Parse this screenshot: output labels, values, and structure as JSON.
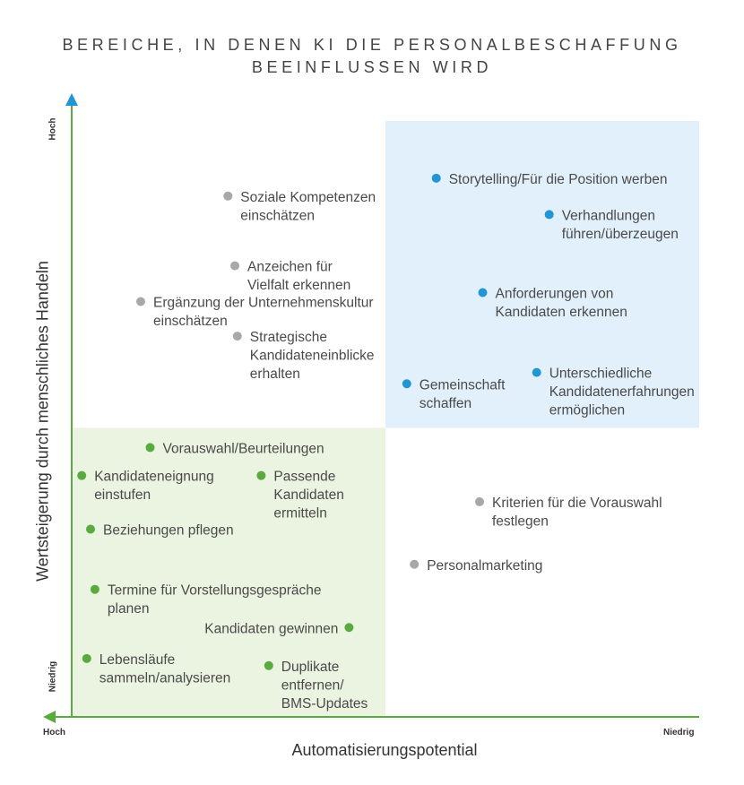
{
  "title_line1": "BEREICHE, IN DENEN KI DIE PERSONALBESCHAFFUNG",
  "title_line2": "BEEINFLUSSEN WIRD",
  "colors": {
    "blue": "#2196d3",
    "green": "#5aab3f",
    "gray": "#a8a8a8",
    "axis": "#5aab3f",
    "axis_top": "#2196d3",
    "blue_zone": "#e1f0fb",
    "green_zone": "#ebf3e1"
  },
  "chart_data": {
    "type": "scatter",
    "title": "BEREICHE, IN DENEN KI DIE PERSONALBESCHAFFUNG BEEINFLUSSEN WIRD",
    "xlabel": "Automatisierungspotential",
    "ylabel": "Wertsteigerung durch menschliches Handeln",
    "x_low_label": "Niedrig",
    "x_high_label": "Hoch",
    "y_low_label": "Niedrig",
    "y_high_label": "Hoch",
    "x_direction": "Hoch (left) to Niedrig (right)",
    "xlim": [
      0,
      100
    ],
    "ylim": [
      0,
      100
    ],
    "quadrants": [
      {
        "name": "blue",
        "x": [
          50,
          100
        ],
        "y": [
          48.5,
          100
        ]
      },
      {
        "name": "green",
        "x": [
          0,
          50
        ],
        "y": [
          0,
          48.5
        ]
      }
    ],
    "points": [
      {
        "label": [
          "Storytelling/Für die Position werben"
        ],
        "x": 58.1,
        "y": 90.4,
        "color": "blue",
        "side": "right"
      },
      {
        "label": [
          "Verhandlungen",
          "führen/überzeugen"
        ],
        "x": 76.1,
        "y": 84.3,
        "color": "blue",
        "side": "right"
      },
      {
        "label": [
          "Anforderungen von",
          "Kandidaten erkennen"
        ],
        "x": 65.5,
        "y": 71.2,
        "color": "blue",
        "side": "right"
      },
      {
        "label": [
          "Unterschiedliche",
          "Kandidatenerfahrungen",
          "ermöglichen"
        ],
        "x": 74.1,
        "y": 57.8,
        "color": "blue",
        "side": "right"
      },
      {
        "label": [
          "Gemeinschaft",
          "schaffen"
        ],
        "x": 53.4,
        "y": 55.9,
        "color": "blue",
        "side": "right"
      },
      {
        "label": [
          "Soziale Kompetenzen",
          "einschätzen"
        ],
        "x": 24.9,
        "y": 87.4,
        "color": "gray",
        "side": "right"
      },
      {
        "label": [
          "Anzeichen für",
          "Vielfalt erkennen"
        ],
        "x": 26.0,
        "y": 75.7,
        "color": "gray",
        "side": "right"
      },
      {
        "label": [
          "Ergänzung der Unternehmenskultur",
          "einschätzen"
        ],
        "x": 11.0,
        "y": 69.7,
        "color": "gray",
        "side": "right"
      },
      {
        "label": [
          "Strategische",
          "Kandidateneinblicke",
          "erhalten"
        ],
        "x": 26.4,
        "y": 63.9,
        "color": "gray",
        "side": "right"
      },
      {
        "label": [
          "Kriterien für die Vorauswahl",
          "festlegen"
        ],
        "x": 65.0,
        "y": 36.1,
        "color": "gray",
        "side": "right"
      },
      {
        "label": [
          "Personalmarketing"
        ],
        "x": 54.6,
        "y": 25.6,
        "color": "gray",
        "side": "right"
      },
      {
        "label": [
          "Vorauswahl/Beurteilungen"
        ],
        "x": 12.5,
        "y": 45.2,
        "color": "green",
        "side": "right"
      },
      {
        "label": [
          "Kandidateneignung",
          "einstufen"
        ],
        "x": 1.6,
        "y": 40.5,
        "color": "green",
        "side": "right"
      },
      {
        "label": [
          "Passende",
          "Kandidaten",
          "ermitteln"
        ],
        "x": 30.2,
        "y": 40.5,
        "color": "green",
        "side": "right"
      },
      {
        "label": [
          "Beziehungen pflegen"
        ],
        "x": 3.0,
        "y": 31.5,
        "color": "green",
        "side": "right"
      },
      {
        "label": [
          "Termine für Vorstellungsgespräche",
          "planen"
        ],
        "x": 3.7,
        "y": 21.4,
        "color": "green",
        "side": "right"
      },
      {
        "label": [
          "Kandidaten gewinnen"
        ],
        "x": 44.2,
        "y": 15.0,
        "color": "green",
        "side": "left"
      },
      {
        "label": [
          "Lebensläufe",
          "sammeln/analysieren"
        ],
        "x": 2.4,
        "y": 9.8,
        "color": "green",
        "side": "right"
      },
      {
        "label": [
          "Duplikate",
          "entfernen/",
          "BMS-Updates"
        ],
        "x": 31.4,
        "y": 8.6,
        "color": "green",
        "side": "right"
      }
    ]
  }
}
